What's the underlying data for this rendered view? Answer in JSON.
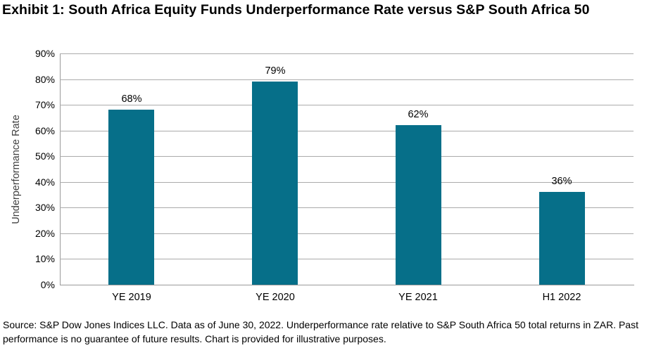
{
  "title": "Exhibit 1: South Africa Equity Funds Underperformance Rate versus S&P South Africa 50",
  "source": "Source: S&P Dow Jones Indices LLC. Data as of June 30, 2022. Underperformance rate relative to S&P South Africa 50 total returns in ZAR. Past performance is no guarantee of future results. Chart is provided for illustrative purposes.",
  "chart_data": {
    "type": "bar",
    "title": "Exhibit 1: South Africa Equity Funds Underperformance Rate versus S&P South Africa 50",
    "categories": [
      "YE 2019",
      "YE 2020",
      "YE 2021",
      "H1 2022"
    ],
    "values": [
      68,
      79,
      62,
      36
    ],
    "value_labels": [
      "68%",
      "79%",
      "62%",
      "36%"
    ],
    "xlabel": "",
    "ylabel": "Underperformance Rate",
    "ylim": [
      0,
      90
    ],
    "ytick_step": 10,
    "ytick_suffix": "%",
    "grid": "horizontal",
    "legend": "none",
    "bar_color": "#066F89",
    "gridline_color": "#ababab",
    "axis_color": "#9a9a9a",
    "text_color": "#000000"
  }
}
